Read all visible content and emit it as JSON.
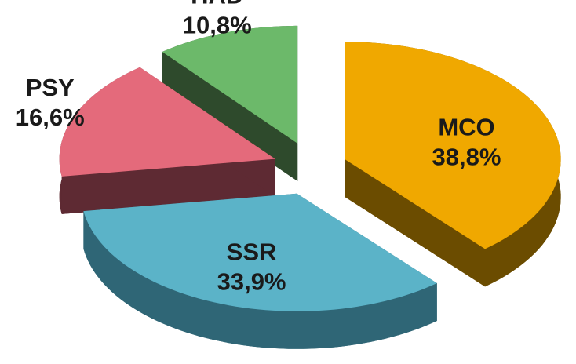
{
  "chart_data": {
    "type": "pie",
    "categories": [
      "MCO",
      "SSR",
      "PSY",
      "HAD"
    ],
    "values": [
      38.8,
      33.9,
      16.6,
      10.8
    ],
    "value_labels": [
      "38,8%",
      "33,9%",
      "16,6%",
      "10,8%"
    ],
    "colors": [
      "#f0a800",
      "#5bb3c8",
      "#e46a7b",
      "#6cb96a"
    ],
    "side_colors": [
      "#6b4c00",
      "#2f6676",
      "#5e2a33",
      "#2e4a2c"
    ]
  }
}
